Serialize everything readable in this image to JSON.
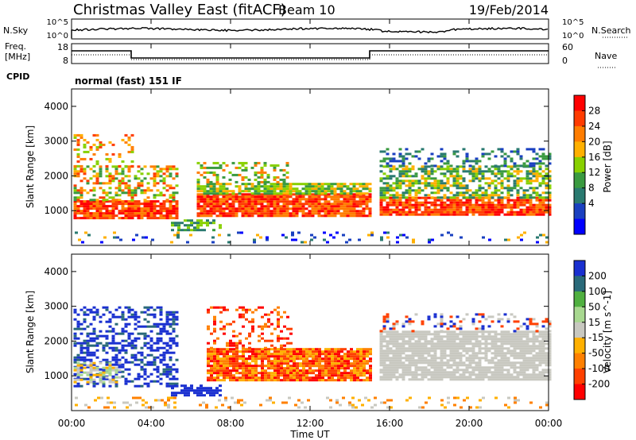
{
  "header": {
    "station": "Christmas Valley East (fitACF)",
    "beam": "Beam 10",
    "date": "19/Feb/2014"
  },
  "noise_panel": {
    "left_label": "N.Sky",
    "right_label": "N.Search",
    "left_ticks": [
      "10^5",
      "10^0"
    ],
    "right_ticks": [
      "10^5",
      "10^0"
    ]
  },
  "freq_panel": {
    "left_label_1": "Freq.",
    "left_label_2": "[MHz]",
    "cpid_label": "CPID",
    "left_ticks": [
      "18",
      "8"
    ],
    "right_label": "Nave",
    "right_ticks": [
      "60",
      "0"
    ],
    "cpid_text": "normal (fast) 151 IF"
  },
  "x_axis": {
    "label": "Time UT",
    "ticks": [
      "00:00",
      "04:00",
      "08:00",
      "12:00",
      "16:00",
      "20:00",
      "00:00"
    ]
  },
  "chart_data": [
    {
      "type": "heatmap",
      "name": "power",
      "ylabel": "Slant Range [km]",
      "yticks": [
        1000,
        2000,
        3000,
        4000
      ],
      "ylim": [
        0,
        4500
      ],
      "xlim": [
        0,
        24
      ],
      "colorbar": {
        "label": "Power [dB]",
        "ticks": [
          "28",
          "24",
          "20",
          "16",
          "12",
          "8",
          "4"
        ],
        "colors": [
          "#ff0000",
          "#ff3b00",
          "#ff7d00",
          "#ffb000",
          "#88d000",
          "#3a9a40",
          "#2a7a70",
          "#1a40c0",
          "#0000ff"
        ]
      },
      "scatter_bands": [
        {
          "t0": 0.1,
          "t1": 5.3,
          "r0": 800,
          "r1": 1300,
          "c": [
            "#ff0000",
            "#ff3b00",
            "#ff7d00"
          ],
          "d": 0.85
        },
        {
          "t0": 0.1,
          "t1": 5.3,
          "r0": 1300,
          "r1": 2300,
          "c": [
            "#ff7d00",
            "#ffb000",
            "#88d000",
            "#3a9a40",
            "#ff3b00"
          ],
          "d": 0.45
        },
        {
          "t0": 0.1,
          "t1": 3.0,
          "r0": 2300,
          "r1": 3200,
          "c": [
            "#ff7d00",
            "#ffb000",
            "#ff3b00",
            "#88d000"
          ],
          "d": 0.25
        },
        {
          "t0": 6.3,
          "t1": 15.0,
          "r0": 850,
          "r1": 1500,
          "c": [
            "#ff0000",
            "#ff3b00",
            "#ff7d00"
          ],
          "d": 0.9
        },
        {
          "t0": 6.3,
          "t1": 15.0,
          "r0": 1500,
          "r1": 1800,
          "c": [
            "#ffb000",
            "#88d000",
            "#3a9a40"
          ],
          "d": 0.8
        },
        {
          "t0": 6.3,
          "t1": 11.0,
          "r0": 1800,
          "r1": 2400,
          "c": [
            "#3a9a40",
            "#88d000",
            "#ff7d00"
          ],
          "d": 0.35
        },
        {
          "t0": 15.5,
          "t1": 24.0,
          "r0": 900,
          "r1": 1400,
          "c": [
            "#ff0000",
            "#ff3b00",
            "#ff7d00"
          ],
          "d": 0.85
        },
        {
          "t0": 15.5,
          "t1": 24.0,
          "r0": 1400,
          "r1": 2300,
          "c": [
            "#3a9a40",
            "#88d000",
            "#2a7a70",
            "#ffb000"
          ],
          "d": 0.6
        },
        {
          "t0": 15.5,
          "t1": 24.0,
          "r0": 2300,
          "r1": 2800,
          "c": [
            "#1a40c0",
            "#2a7a70",
            "#3a9a40"
          ],
          "d": 0.3
        },
        {
          "t0": 5.0,
          "t1": 7.5,
          "r0": 450,
          "r1": 750,
          "c": [
            "#2a7a70",
            "#3a9a40",
            "#88d000"
          ],
          "d": 0.6
        },
        {
          "t0": 0.0,
          "t1": 24.0,
          "r0": 100,
          "r1": 400,
          "c": [
            "#1a40c0",
            "#0000ff",
            "#2a7a70",
            "#ffb000"
          ],
          "d": 0.12
        }
      ]
    },
    {
      "type": "heatmap",
      "name": "velocity",
      "ylabel": "Slant Range [km]",
      "yticks": [
        1000,
        2000,
        3000,
        4000
      ],
      "ylim": [
        0,
        4500
      ],
      "xlim": [
        0,
        24
      ],
      "colorbar": {
        "label": "Velocity [m s^-1]",
        "ticks": [
          "200",
          "100",
          "50",
          "15",
          "-15",
          "-50",
          "-100",
          "-200"
        ],
        "colors": [
          "#1a30d0",
          "#2a6a7a",
          "#50b040",
          "#a8d890",
          "#c8c8c0",
          "#ffb000",
          "#ff8000",
          "#ff4000",
          "#ff0000"
        ]
      },
      "scatter_bands": [
        {
          "t0": 0.1,
          "t1": 5.3,
          "r0": 700,
          "r1": 3000,
          "c": [
            "#1a30d0",
            "#1a30d0",
            "#2a6a7a",
            "#1a30d0"
          ],
          "d": 0.45
        },
        {
          "t0": 0.1,
          "t1": 2.5,
          "r0": 800,
          "r1": 1400,
          "c": [
            "#c8c8c0",
            "#ffb000",
            "#a8d890"
          ],
          "d": 0.5
        },
        {
          "t0": 5.0,
          "t1": 7.5,
          "r0": 450,
          "r1": 750,
          "c": [
            "#1a30d0"
          ],
          "d": 0.7
        },
        {
          "t0": 6.8,
          "t1": 15.0,
          "r0": 850,
          "r1": 1800,
          "c": [
            "#ff4000",
            "#ff8000",
            "#ff0000",
            "#ffb000"
          ],
          "d": 0.9
        },
        {
          "t0": 6.8,
          "t1": 11.0,
          "r0": 1800,
          "r1": 3000,
          "c": [
            "#ff4000",
            "#ff8000",
            "#ff0000"
          ],
          "d": 0.25
        },
        {
          "t0": 15.5,
          "t1": 24.0,
          "r0": 900,
          "r1": 2300,
          "c": [
            "#c8c8c0"
          ],
          "d": 0.85
        },
        {
          "t0": 15.5,
          "t1": 24.0,
          "r0": 2300,
          "r1": 2800,
          "c": [
            "#c8c8c0",
            "#1a30d0",
            "#ff4000"
          ],
          "d": 0.25
        },
        {
          "t0": 0.0,
          "t1": 24.0,
          "r0": 100,
          "r1": 400,
          "c": [
            "#ffb000",
            "#ff8000",
            "#c8c8c0"
          ],
          "d": 0.15
        }
      ]
    }
  ]
}
